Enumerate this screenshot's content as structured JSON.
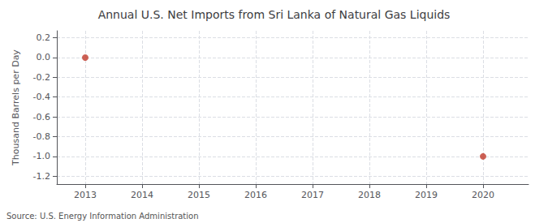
{
  "chart_data": {
    "type": "scatter",
    "title": "Annual U.S. Net Imports from Sri Lanka of Natural Gas Liquids",
    "ylabel": "Thousand Barrels per Day",
    "annotation": "Source: U.S. Energy Information Administration",
    "x": [
      2013,
      2020
    ],
    "values": [
      0.0,
      -1.0
    ],
    "color": "#c0392b",
    "marker": "circle",
    "xlim": [
      2012.5,
      2020.8
    ],
    "xticks": [
      2013,
      2014,
      2015,
      2016,
      2017,
      2018,
      2019,
      2020
    ],
    "ylim": [
      -1.28,
      0.27
    ],
    "yticks": [
      0.2,
      {
        "value": 0,
        "label": "0.0"
      },
      -0.2,
      -0.4,
      -0.6,
      -0.8,
      {
        "value": -1,
        "label": "-1.0"
      },
      -1.2
    ],
    "grid": true
  }
}
